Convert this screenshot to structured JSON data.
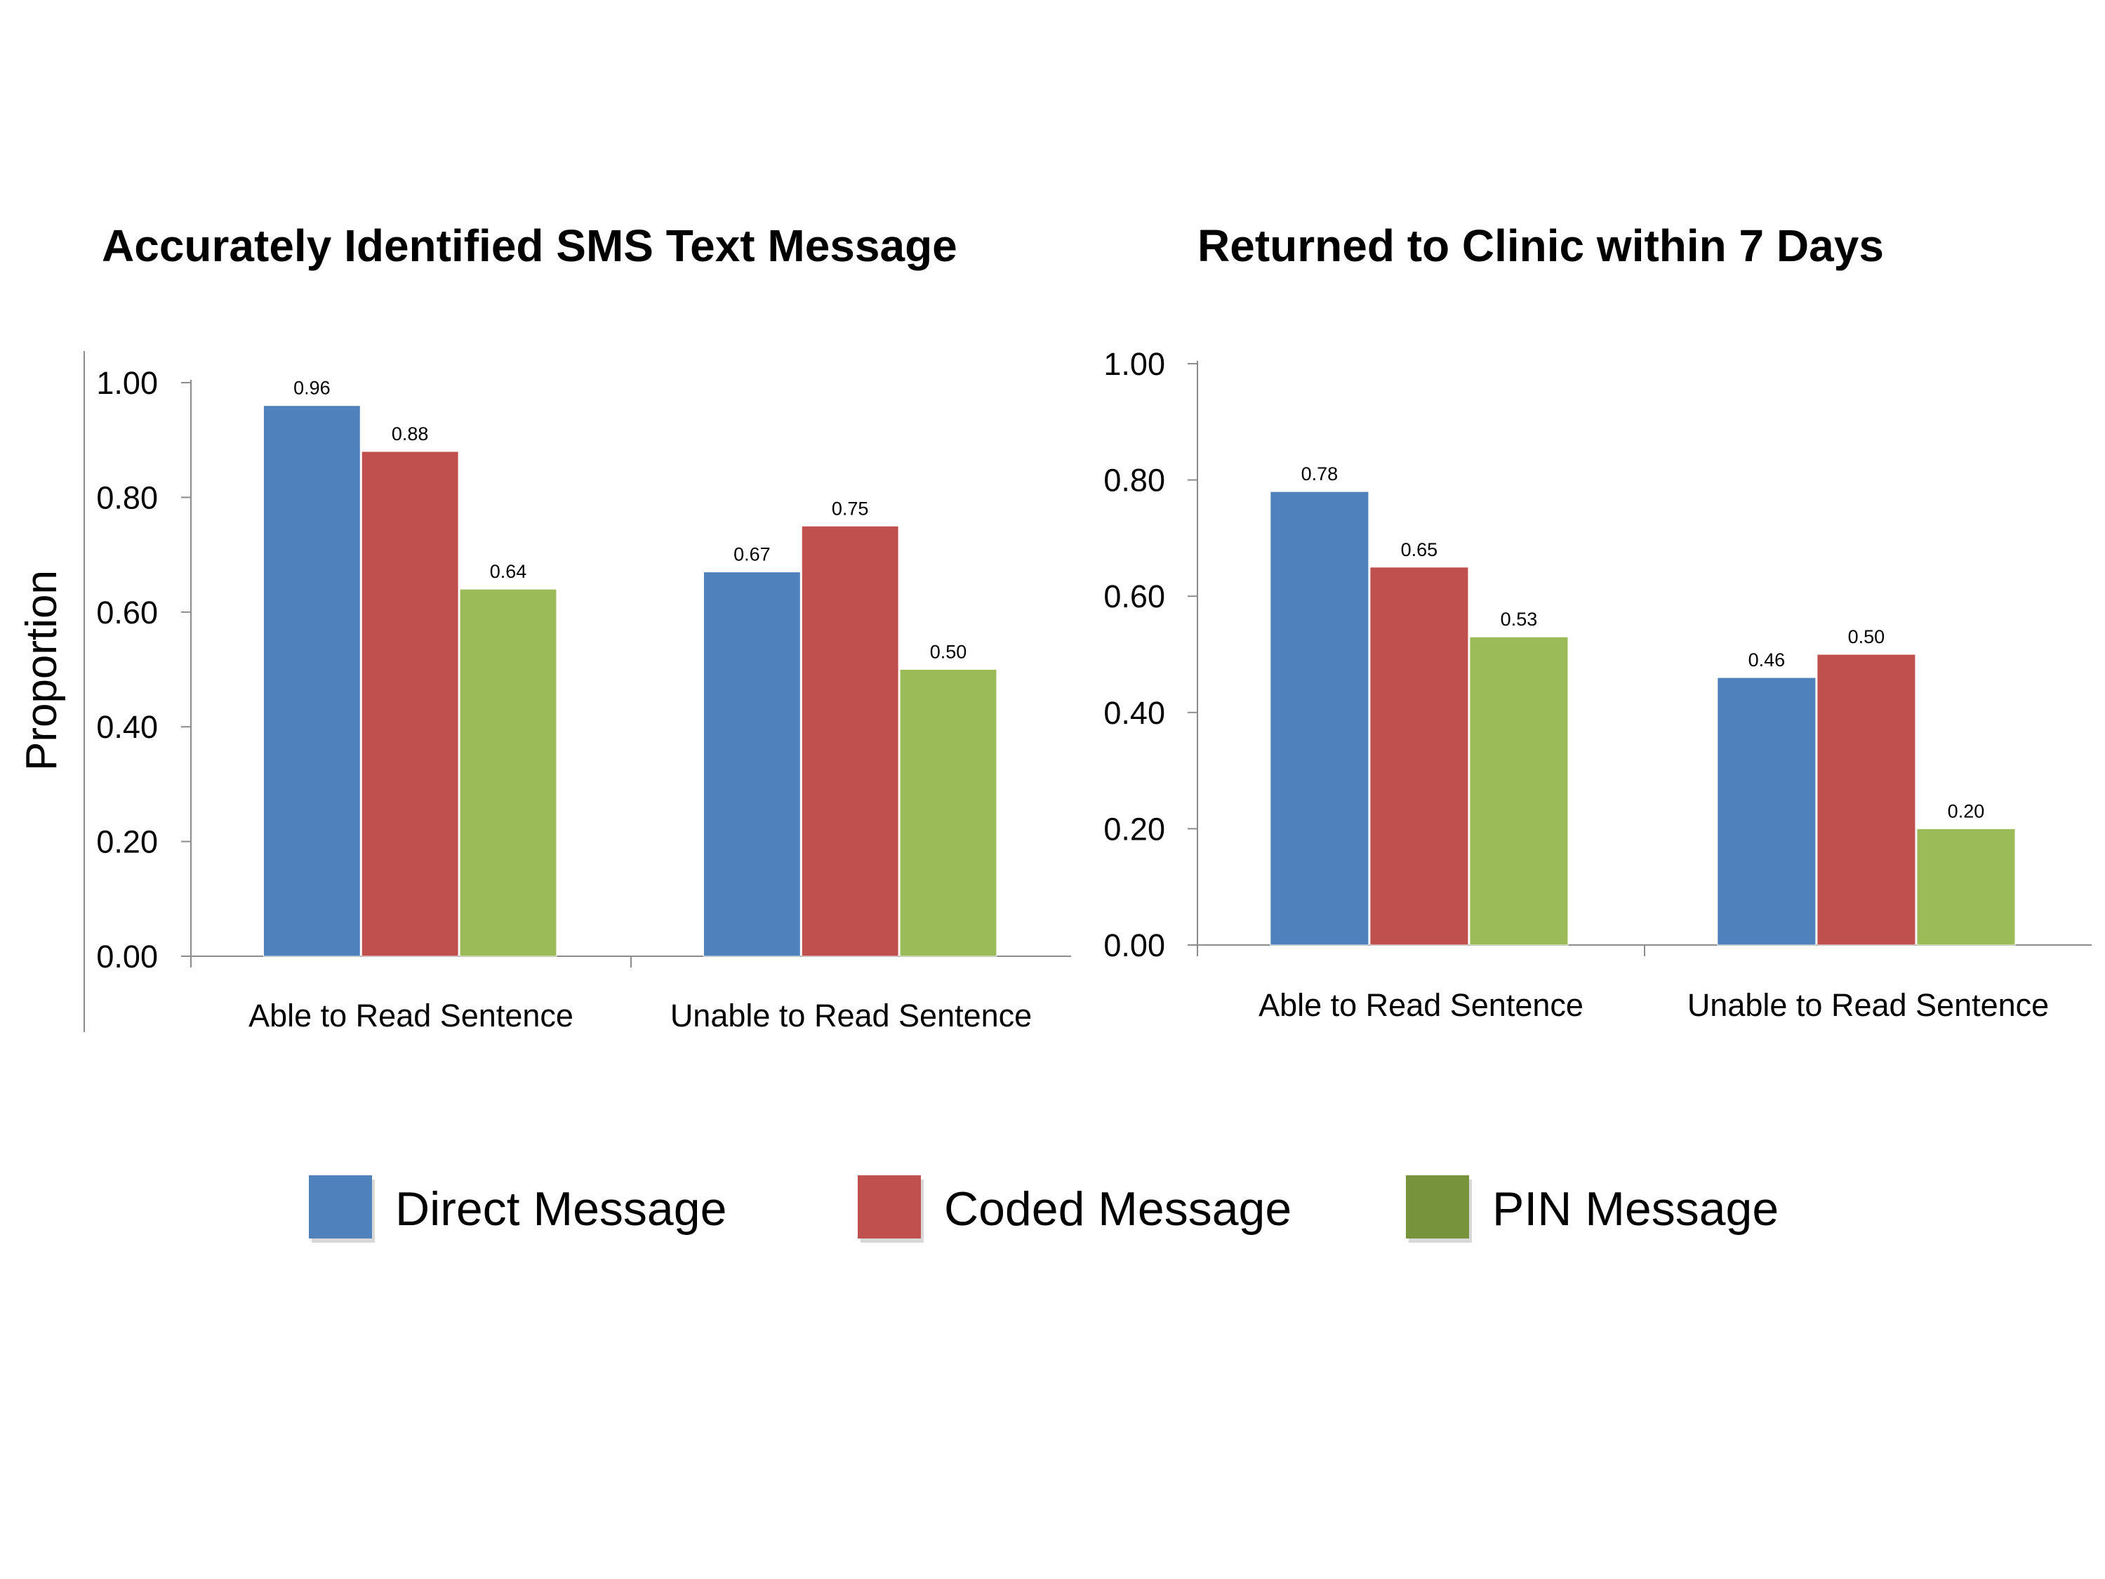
{
  "colors": {
    "Direct Message": "#4f81bd",
    "Coded Message": "#c0504d",
    "PIN Message": "#9bbb59",
    "PIN Message legend": "#77933c"
  },
  "legend": {
    "placement": "bottom-center",
    "items": [
      "Direct Message",
      "Coded Message",
      "PIN Message"
    ]
  },
  "chart_data": [
    {
      "type": "bar",
      "title": "Accurately Identified SMS Text Message",
      "xlabel": "",
      "ylabel": "Proportion",
      "ylim": [
        0,
        1
      ],
      "yticks": [
        "0.00",
        "0.20",
        "0.40",
        "0.60",
        "0.80",
        "1.00"
      ],
      "grid": false,
      "categories": [
        "Able to Read Sentence",
        "Unable to Read Sentence"
      ],
      "series": [
        {
          "name": "Direct Message",
          "values": [
            0.96,
            0.67
          ],
          "labels": [
            "0.96",
            "0.67"
          ]
        },
        {
          "name": "Coded Message",
          "values": [
            0.88,
            0.75
          ],
          "labels": [
            "0.88",
            "0.75"
          ]
        },
        {
          "name": "PIN Message",
          "values": [
            0.64,
            0.5
          ],
          "labels": [
            "0.64",
            "0.50"
          ]
        }
      ]
    },
    {
      "type": "bar",
      "title": "Returned to Clinic within 7 Days",
      "xlabel": "",
      "ylabel": "",
      "ylim": [
        0,
        1
      ],
      "yticks": [
        "0.00",
        "0.20",
        "0.40",
        "0.60",
        "0.80",
        "1.00"
      ],
      "grid": false,
      "categories": [
        "Able to Read Sentence",
        "Unable to Read Sentence"
      ],
      "series": [
        {
          "name": "Direct Message",
          "values": [
            0.78,
            0.46
          ],
          "labels": [
            "0.78",
            "0.46"
          ]
        },
        {
          "name": "Coded Message",
          "values": [
            0.65,
            0.5
          ],
          "labels": [
            "0.65",
            "0.50"
          ]
        },
        {
          "name": "PIN Message",
          "values": [
            0.53,
            0.2
          ],
          "labels": [
            "0.53",
            "0.20"
          ]
        }
      ]
    }
  ]
}
